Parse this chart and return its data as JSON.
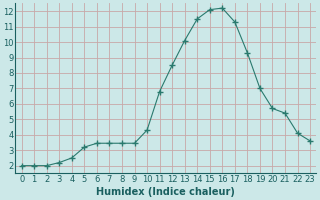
{
  "x": [
    0,
    1,
    2,
    3,
    4,
    5,
    6,
    7,
    8,
    9,
    10,
    11,
    12,
    13,
    14,
    15,
    16,
    17,
    18,
    19,
    20,
    21,
    22,
    23
  ],
  "y": [
    2.0,
    2.0,
    2.0,
    2.2,
    2.5,
    3.2,
    3.45,
    3.45,
    3.45,
    3.45,
    4.3,
    6.8,
    8.5,
    10.1,
    11.5,
    12.1,
    12.2,
    11.3,
    9.3,
    7.0,
    5.7,
    5.4,
    4.1,
    3.6
  ],
  "xlabel": "Humidex (Indice chaleur)",
  "bg_color": "#cce8e8",
  "line_color": "#2a7a6e",
  "marker_color": "#2a7a6e",
  "grid_color": "#c8a8a8",
  "tick_label_color": "#1a6060",
  "xlim": [
    -0.5,
    23.5
  ],
  "ylim": [
    1.5,
    12.5
  ],
  "yticks": [
    2,
    3,
    4,
    5,
    6,
    7,
    8,
    9,
    10,
    11,
    12
  ],
  "xticks": [
    0,
    1,
    2,
    3,
    4,
    5,
    6,
    7,
    8,
    9,
    10,
    11,
    12,
    13,
    14,
    15,
    16,
    17,
    18,
    19,
    20,
    21,
    22,
    23
  ],
  "xlabel_fontsize": 7.0,
  "tick_fontsize": 6.0
}
